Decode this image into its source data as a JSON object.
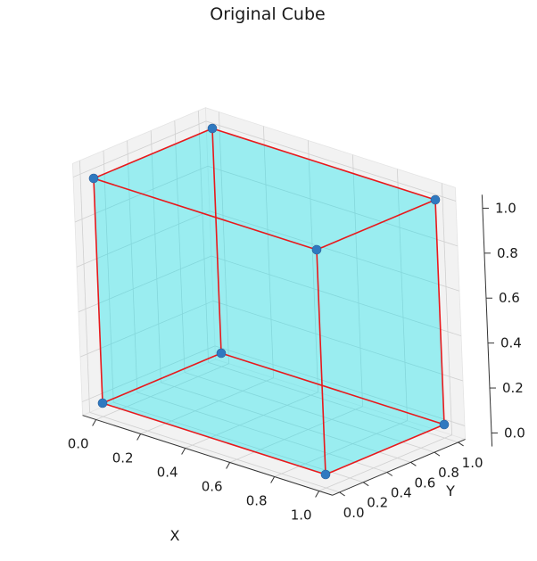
{
  "chart_data": {
    "type": "scatter3d",
    "title": "Original Cube",
    "xlabel": "X",
    "ylabel": "Y",
    "zlabel": "",
    "xlim": [
      0,
      1
    ],
    "ylim": [
      0,
      1
    ],
    "zlim": [
      0,
      1
    ],
    "xticks": [
      "0.0",
      "0.2",
      "0.4",
      "0.6",
      "0.8",
      "1.0"
    ],
    "yticks": [
      "0.0",
      "0.2",
      "0.4",
      "0.6",
      "0.8",
      "1.0"
    ],
    "zticks": [
      "0.0",
      "0.2",
      "0.4",
      "0.6",
      "0.8",
      "1.0"
    ],
    "grid": true,
    "vertices": [
      [
        0,
        0,
        0
      ],
      [
        1,
        0,
        0
      ],
      [
        1,
        1,
        0
      ],
      [
        0,
        1,
        0
      ],
      [
        0,
        0,
        1
      ],
      [
        1,
        0,
        1
      ],
      [
        1,
        1,
        1
      ],
      [
        0,
        1,
        1
      ]
    ],
    "edges": [
      [
        0,
        1
      ],
      [
        1,
        2
      ],
      [
        2,
        3
      ],
      [
        3,
        0
      ],
      [
        4,
        5
      ],
      [
        5,
        6
      ],
      [
        6,
        7
      ],
      [
        7,
        4
      ],
      [
        0,
        4
      ],
      [
        1,
        5
      ],
      [
        2,
        6
      ],
      [
        3,
        7
      ]
    ],
    "faces": [
      [
        0,
        1,
        2,
        3
      ],
      [
        4,
        5,
        6,
        7
      ],
      [
        0,
        1,
        5,
        4
      ],
      [
        2,
        3,
        7,
        6
      ],
      [
        1,
        2,
        6,
        5
      ],
      [
        0,
        3,
        7,
        4
      ]
    ],
    "colors": {
      "face": "#00e5f0",
      "edge": "#e8191c",
      "point": "#2f79c0",
      "pane": "#f2f2f2",
      "grid": "#d0d0d0"
    }
  }
}
